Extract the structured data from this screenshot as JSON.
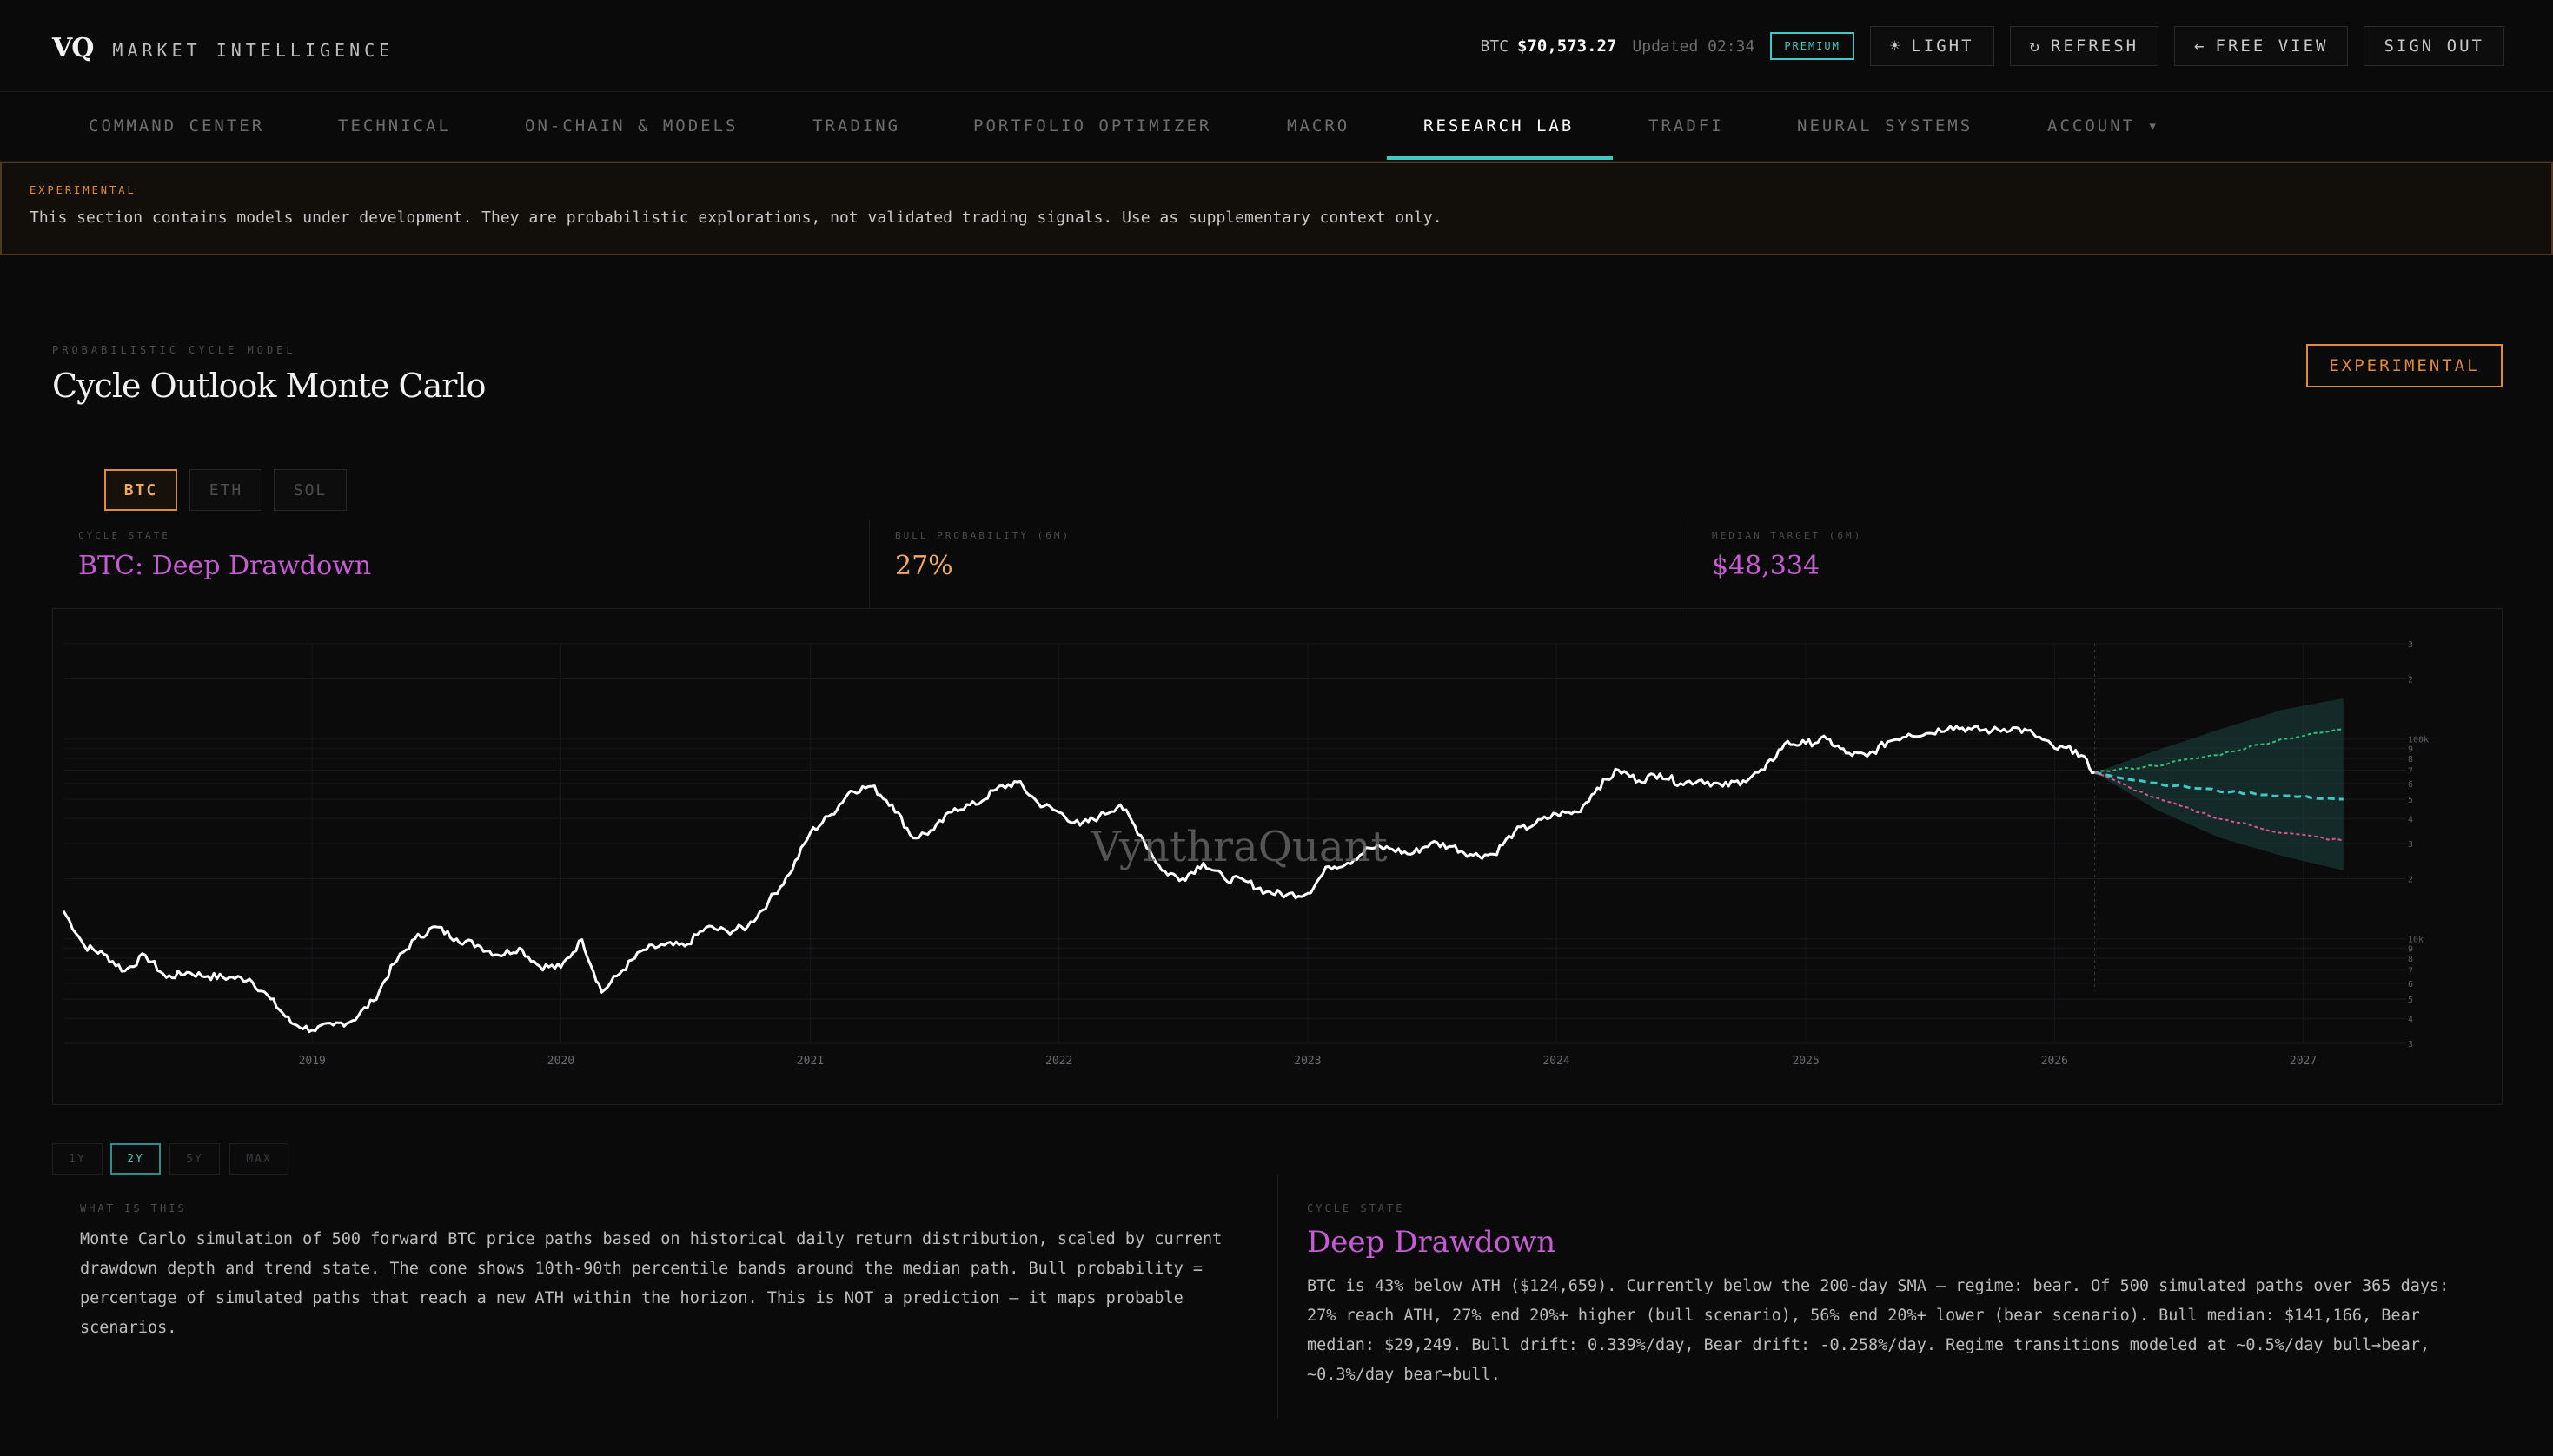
{
  "brand": {
    "logo": "VQ",
    "name": "MARKET INTELLIGENCE"
  },
  "ticker": {
    "symbol": "BTC",
    "price": "$70,573.27",
    "updated": "Updated 02:34"
  },
  "premium_badge": "PREMIUM",
  "top_buttons": {
    "light": "LIGHT",
    "refresh": "REFRESH",
    "free_view": "FREE VIEW",
    "sign_out": "SIGN OUT"
  },
  "nav": {
    "items": [
      {
        "label": "COMMAND CENTER",
        "active": false
      },
      {
        "label": "TECHNICAL",
        "active": false
      },
      {
        "label": "ON-CHAIN & MODELS",
        "active": false
      },
      {
        "label": "TRADING",
        "active": false
      },
      {
        "label": "PORTFOLIO OPTIMIZER",
        "active": false
      },
      {
        "label": "MACRO",
        "active": false
      },
      {
        "label": "RESEARCH LAB",
        "active": true
      },
      {
        "label": "TRADFI",
        "active": false
      },
      {
        "label": "NEURAL SYSTEMS",
        "active": false
      },
      {
        "label": "ACCOUNT ▾",
        "active": false
      }
    ]
  },
  "banner": {
    "tag": "EXPERIMENTAL",
    "text": "This section contains models under development. They are probabilistic explorations, not validated trading signals. Use as supplementary context only."
  },
  "header": {
    "eyebrow": "PROBABILISTIC CYCLE MODEL",
    "title": "Cycle Outlook Monte Carlo",
    "badge": "EXPERIMENTAL"
  },
  "asset_tabs": [
    {
      "label": "BTC",
      "active": true
    },
    {
      "label": "ETH",
      "active": false
    },
    {
      "label": "SOL",
      "active": false
    }
  ],
  "stats": {
    "cycle_state": {
      "label": "CYCLE STATE",
      "value": "BTC: Deep Drawdown"
    },
    "bull_probability": {
      "label": "BULL PROBABILITY (6M)",
      "value": "27%"
    },
    "median_target": {
      "label": "MEDIAN TARGET (6M)",
      "value": "$48,334"
    }
  },
  "colors": {
    "accent_teal": "#3fc9c6",
    "accent_orange": "#e08a3a",
    "state_purple": "#c65bd4",
    "bull_green": "#2fc07a",
    "bear_pink": "#d9558c",
    "price_line": "#ffffff",
    "cone_fill": "#1f4f4c"
  },
  "chart_data": {
    "type": "line",
    "title": "",
    "watermark": "VynthraQuant",
    "y_scale": "log",
    "ylim": [
      3000,
      300000
    ],
    "y_tick_labels": [
      "3",
      "2",
      "100k",
      "9",
      "8",
      "7",
      "6",
      "5",
      "4",
      "3",
      "2",
      "10k",
      "9",
      "8",
      "7",
      "6",
      "5",
      "4",
      "3"
    ],
    "x_tick_labels": [
      "2019",
      "2020",
      "2021",
      "2022",
      "2023",
      "2024",
      "2025",
      "2026",
      "2027"
    ],
    "forecast_start": "2026-03-01",
    "grid": true,
    "series": [
      {
        "role": "price",
        "x": [
          "2018-01-01",
          "2018-02-01",
          "2018-03-01",
          "2018-04-01",
          "2018-05-01",
          "2018-06-01",
          "2018-07-01",
          "2018-08-01",
          "2018-09-01",
          "2018-10-01",
          "2018-11-01",
          "2018-12-01",
          "2019-01-01",
          "2019-02-01",
          "2019-03-01",
          "2019-04-01",
          "2019-05-01",
          "2019-06-01",
          "2019-07-01",
          "2019-08-01",
          "2019-09-01",
          "2019-10-01",
          "2019-11-01",
          "2019-12-01",
          "2020-01-01",
          "2020-02-01",
          "2020-03-01",
          "2020-04-01",
          "2020-05-01",
          "2020-06-01",
          "2020-07-01",
          "2020-08-01",
          "2020-09-01",
          "2020-10-01",
          "2020-11-01",
          "2020-12-01",
          "2021-01-01",
          "2021-02-01",
          "2021-03-01",
          "2021-04-01",
          "2021-05-01",
          "2021-06-01",
          "2021-07-01",
          "2021-08-01",
          "2021-09-01",
          "2021-10-01",
          "2021-11-01",
          "2021-12-01",
          "2022-01-01",
          "2022-02-01",
          "2022-03-01",
          "2022-04-01",
          "2022-05-01",
          "2022-06-01",
          "2022-07-01",
          "2022-08-01",
          "2022-09-01",
          "2022-10-01",
          "2022-11-01",
          "2022-12-01",
          "2023-01-01",
          "2023-02-01",
          "2023-03-01",
          "2023-04-01",
          "2023-05-01",
          "2023-06-01",
          "2023-07-01",
          "2023-08-01",
          "2023-09-01",
          "2023-10-01",
          "2023-11-01",
          "2023-12-01",
          "2024-01-01",
          "2024-02-01",
          "2024-03-01",
          "2024-04-01",
          "2024-05-01",
          "2024-06-01",
          "2024-07-01",
          "2024-08-01",
          "2024-09-01",
          "2024-10-01",
          "2024-11-01",
          "2024-12-01",
          "2025-01-01",
          "2025-02-01",
          "2025-03-01",
          "2025-04-01",
          "2025-05-01",
          "2025-06-01",
          "2025-07-01",
          "2025-08-01",
          "2025-09-01",
          "2025-10-01",
          "2025-11-01",
          "2025-12-01",
          "2026-01-01",
          "2026-02-01",
          "2026-03-01"
        ],
        "values": [
          13800,
          9200,
          8400,
          6900,
          8300,
          6400,
          6800,
          6500,
          6400,
          6300,
          5000,
          3800,
          3500,
          3700,
          3900,
          4900,
          7500,
          10000,
          11500,
          10000,
          9300,
          8300,
          9000,
          7300,
          7200,
          9900,
          5400,
          7000,
          8800,
          9300,
          9200,
          11400,
          10900,
          11500,
          15400,
          21000,
          34000,
          42000,
          55000,
          58000,
          47000,
          32000,
          35000,
          45000,
          47000,
          56000,
          61000,
          48000,
          43000,
          37000,
          41000,
          47000,
          33000,
          22000,
          20000,
          24000,
          20000,
          19500,
          17200,
          16600,
          16900,
          23000,
          24000,
          28500,
          28400,
          26500,
          30200,
          29000,
          26200,
          26500,
          34500,
          37600,
          42200,
          43100,
          57000,
          70000,
          62000,
          67000,
          60000,
          62500,
          58000,
          62000,
          70000,
          95000,
          95000,
          100000,
          85000,
          82000,
          97000,
          106000,
          107000,
          116000,
          112000,
          110000,
          114000,
          106000,
          90000,
          88000,
          68000
        ]
      }
    ],
    "forecast": {
      "x": [
        "2026-03-01",
        "2026-06-01",
        "2026-09-01",
        "2026-12-01",
        "2027-03-01"
      ],
      "bull_path": [
        68000,
        74000,
        84000,
        100000,
        112000
      ],
      "median_path": [
        68000,
        60000,
        55000,
        52000,
        50000
      ],
      "bear_path": [
        68000,
        50000,
        40000,
        34000,
        31000
      ],
      "band_p10": [
        68000,
        44000,
        32000,
        26000,
        22000
      ],
      "band_p90": [
        68000,
        88000,
        112000,
        140000,
        160000
      ]
    }
  },
  "range_tabs": [
    {
      "label": "1Y",
      "active": false
    },
    {
      "label": "2Y",
      "active": true
    },
    {
      "label": "5Y",
      "active": false
    },
    {
      "label": "MAX",
      "active": false
    }
  ],
  "what_is_this": {
    "label": "WHAT IS THIS",
    "text": "Monte Carlo simulation of 500 forward BTC price paths based on historical daily return distribution, scaled by current drawdown depth and trend state. The cone shows 10th-90th percentile bands around the median path. Bull probability = percentage of simulated paths that reach a new ATH within the horizon. This is NOT a prediction — it maps probable scenarios."
  },
  "cycle_state_panel": {
    "label": "CYCLE STATE",
    "title": "Deep Drawdown",
    "text": "BTC is 43% below ATH ($124,659). Currently below the 200-day SMA — regime: bear. Of 500 simulated paths over 365 days: 27% reach ATH, 27% end 20%+ higher (bull scenario), 56% end 20%+ lower (bear scenario). Bull median: $141,166, Bear median: $29,249. Bull drift: 0.339%/day, Bear drift: -0.258%/day. Regime transitions modeled at ~0.5%/day bull→bear, ~0.3%/day bear→bull."
  }
}
